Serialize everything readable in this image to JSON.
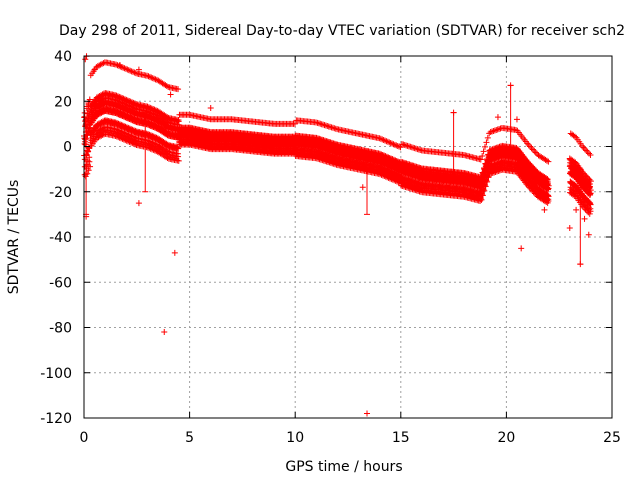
{
  "chart_data": {
    "type": "scatter",
    "title": "Day 298 of 2011, Sidereal Day-to-day VTEC variation (SDTVAR) for receiver sch2",
    "xlabel": "GPS time / hours",
    "ylabel": "SDTVAR / TECUs",
    "xlim": [
      0,
      25
    ],
    "ylim": [
      -120,
      40
    ],
    "xticks": [
      "0",
      "5",
      "10",
      "15",
      "20",
      "25"
    ],
    "yticks": [
      "40",
      "20",
      "0",
      "-20",
      "-40",
      "-60",
      "-80",
      "-100",
      "-120"
    ],
    "grid": true,
    "marker": "+",
    "color": "#ff0000",
    "trend": [
      {
        "x": 0.0,
        "y": 5
      },
      {
        "x": 0.3,
        "y": 12
      },
      {
        "x": 0.6,
        "y": 16
      },
      {
        "x": 1.0,
        "y": 18
      },
      {
        "x": 1.5,
        "y": 17
      },
      {
        "x": 2.0,
        "y": 15
      },
      {
        "x": 2.5,
        "y": 13
      },
      {
        "x": 3.0,
        "y": 12
      },
      {
        "x": 3.5,
        "y": 10
      },
      {
        "x": 4.0,
        "y": 7
      },
      {
        "x": 4.5,
        "y": 6
      },
      {
        "x": 5.0,
        "y": 6
      },
      {
        "x": 5.5,
        "y": 5
      },
      {
        "x": 6.0,
        "y": 4
      },
      {
        "x": 7.0,
        "y": 4
      },
      {
        "x": 8.0,
        "y": 3
      },
      {
        "x": 9.0,
        "y": 2
      },
      {
        "x": 10.0,
        "y": 2
      },
      {
        "x": 11.0,
        "y": 1
      },
      {
        "x": 12.0,
        "y": -2
      },
      {
        "x": 13.0,
        "y": -4
      },
      {
        "x": 14.0,
        "y": -6
      },
      {
        "x": 15.0,
        "y": -10
      },
      {
        "x": 16.0,
        "y": -13
      },
      {
        "x": 17.0,
        "y": -14
      },
      {
        "x": 18.0,
        "y": -15
      },
      {
        "x": 18.8,
        "y": -17
      },
      {
        "x": 19.2,
        "y": -5
      },
      {
        "x": 19.8,
        "y": -3
      },
      {
        "x": 20.5,
        "y": -4
      },
      {
        "x": 21.0,
        "y": -10
      },
      {
        "x": 21.5,
        "y": -15
      },
      {
        "x": 22.0,
        "y": -18
      }
    ],
    "trend2": [
      {
        "x": 23.0,
        "y": -10
      },
      {
        "x": 23.3,
        "y": -12
      },
      {
        "x": 23.6,
        "y": -16
      },
      {
        "x": 24.0,
        "y": -20
      }
    ],
    "outliers": [
      {
        "x": 0.1,
        "y": -31
      },
      {
        "x": 0.5,
        "y": 34
      },
      {
        "x": 1.7,
        "y": 36
      },
      {
        "x": 2.6,
        "y": 34
      },
      {
        "x": 2.6,
        "y": -25
      },
      {
        "x": 3.8,
        "y": -82
      },
      {
        "x": 4.3,
        "y": -47
      },
      {
        "x": 4.1,
        "y": 23
      },
      {
        "x": 6.0,
        "y": 17
      },
      {
        "x": 13.4,
        "y": -118
      },
      {
        "x": 13.2,
        "y": -18
      },
      {
        "x": 17.5,
        "y": 15
      },
      {
        "x": 19.6,
        "y": 13
      },
      {
        "x": 20.2,
        "y": 27
      },
      {
        "x": 20.5,
        "y": 12
      },
      {
        "x": 20.7,
        "y": -45
      },
      {
        "x": 21.8,
        "y": -28
      },
      {
        "x": 23.0,
        "y": -36
      },
      {
        "x": 23.3,
        "y": -28
      },
      {
        "x": 23.7,
        "y": -32
      },
      {
        "x": 23.9,
        "y": -39
      },
      {
        "x": 23.5,
        "y": -52
      }
    ],
    "errorbars": [
      {
        "x": 0.1,
        "lo": -30,
        "hi": 10
      },
      {
        "x": 2.9,
        "lo": -20,
        "hi": 15
      },
      {
        "x": 13.4,
        "lo": -30,
        "hi": -10
      },
      {
        "x": 17.5,
        "lo": -15,
        "hi": 15
      },
      {
        "x": 20.2,
        "lo": -5,
        "hi": 27
      },
      {
        "x": 23.5,
        "lo": -52,
        "hi": -10
      }
    ]
  }
}
